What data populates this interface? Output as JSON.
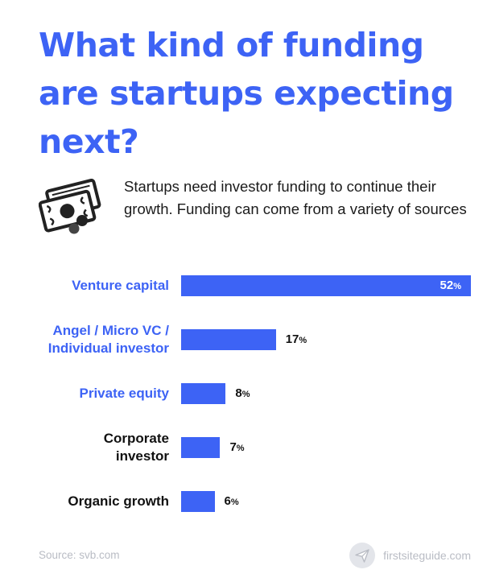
{
  "title": "What kind of funding are startups expecting next?",
  "intro": "Startups need investor funding to continue their growth. Funding can come from a variety of sources",
  "icons": {
    "intro": "money-icon",
    "brand": "paper-plane-icon"
  },
  "colors": {
    "accent": "#3d63f5",
    "dark_label": "#111111",
    "muted": "#b9bcc4"
  },
  "chart_data": {
    "type": "bar",
    "orientation": "horizontal",
    "categories": [
      "Venture capital",
      "Angel / Micro VC / Individual investor",
      "Private equity",
      "Corporate investor",
      "Organic growth"
    ],
    "label_lines": [
      [
        "Venture capital"
      ],
      [
        "Angel / Micro VC /",
        "Individual investor"
      ],
      [
        "Private equity"
      ],
      [
        "Corporate",
        "investor"
      ],
      [
        "Organic growth"
      ]
    ],
    "values": [
      52,
      17,
      8,
      7,
      6
    ],
    "value_unit": "%",
    "xlim": [
      0,
      52
    ],
    "label_colors": [
      "#3d63f5",
      "#3d63f5",
      "#3d63f5",
      "#111111",
      "#111111"
    ],
    "bar_color": "#3d63f5",
    "grid": false,
    "legend": "none",
    "xlabel": "",
    "ylabel": ""
  },
  "footer": {
    "source": "Source: svb.com",
    "brand": "firstsiteguide.com"
  }
}
